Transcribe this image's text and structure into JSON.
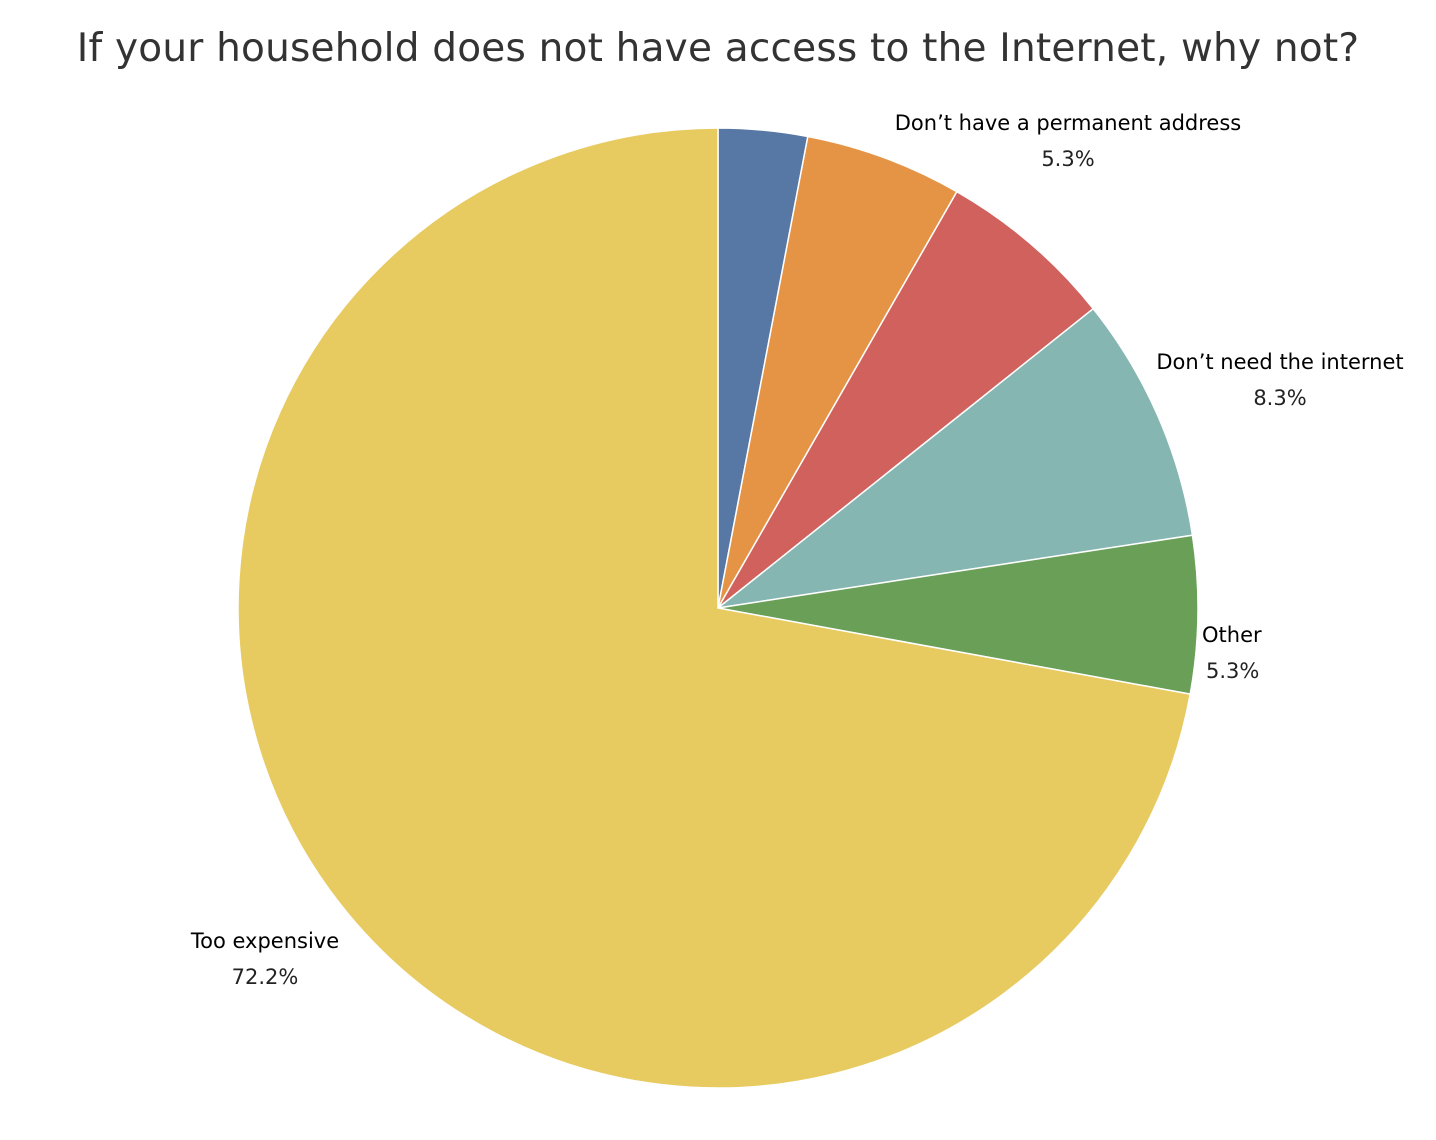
{
  "chart_data": {
    "type": "pie",
    "title": "If your household does not have access to the Internet, why not?",
    "slices": [
      {
        "name": "",
        "value_label": "",
        "value": 3.0,
        "color": "#5778a4"
      },
      {
        "name": "Don’t have a permanent address",
        "value_label": "5.3%",
        "value": 5.3,
        "color": "#e49444"
      },
      {
        "name": "",
        "value_label": "",
        "value": 6.0,
        "color": "#d1615d"
      },
      {
        "name": "Don’t need the internet",
        "value_label": "8.3%",
        "value": 8.3,
        "color": "#85b6b2"
      },
      {
        "name": "Other",
        "value_label": "5.3%",
        "value": 5.3,
        "color": "#6a9f58"
      },
      {
        "name": "Too expensive",
        "value_label": "72.2%",
        "value": 72.2,
        "color": "#e7ca60"
      }
    ]
  }
}
